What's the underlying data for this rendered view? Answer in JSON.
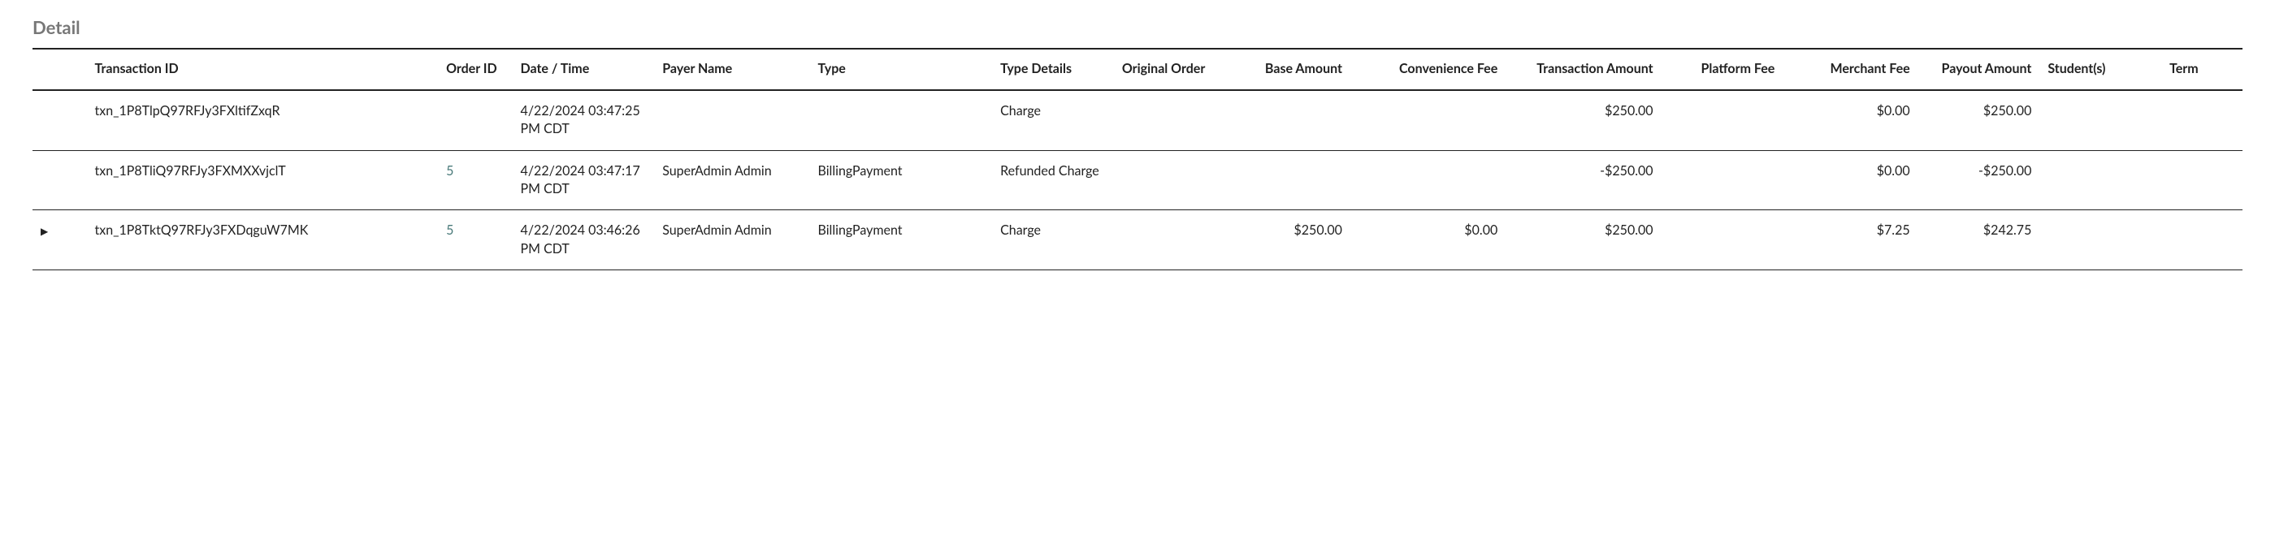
{
  "section_title": "Detail",
  "columns": {
    "expand": "",
    "transaction_id": "Transaction ID",
    "order_id": "Order ID",
    "datetime": "Date / Time",
    "payer_name": "Payer Name",
    "type": "Type",
    "type_details": "Type Details",
    "original_order": "Original Order",
    "base_amount": "Base Amount",
    "convenience_fee": "Convenience Fee",
    "transaction_amount": "Transaction Amount",
    "platform_fee": "Platform Fee",
    "merchant_fee": "Merchant Fee",
    "payout_amount": "Payout Amount",
    "students": "Student(s)",
    "term": "Term"
  },
  "rows": [
    {
      "expandable": false,
      "transaction_id": "txn_1P8TlpQ97RFJy3FXltifZxqR",
      "order_id": "",
      "datetime": "4/22/2024 03:47:25 PM CDT",
      "payer_name": "",
      "type": "",
      "type_details": "Charge",
      "original_order": "",
      "base_amount": "",
      "convenience_fee": "",
      "transaction_amount": "$250.00",
      "platform_fee": "",
      "merchant_fee": "$0.00",
      "payout_amount": "$250.00",
      "students": "",
      "term": ""
    },
    {
      "expandable": false,
      "transaction_id": "txn_1P8TliQ97RFJy3FXMXXvjclT",
      "order_id": "5",
      "datetime": "4/22/2024 03:47:17 PM CDT",
      "payer_name": "SuperAdmin Admin",
      "type": "BillingPayment",
      "type_details": "Refunded Charge",
      "original_order": "",
      "base_amount": "",
      "convenience_fee": "",
      "transaction_amount": "-$250.00",
      "platform_fee": "",
      "merchant_fee": "$0.00",
      "payout_amount": "-$250.00",
      "students": "",
      "term": ""
    },
    {
      "expandable": true,
      "transaction_id": "txn_1P8TktQ97RFJy3FXDqguW7MK",
      "order_id": "5",
      "datetime": "4/22/2024 03:46:26 PM CDT",
      "payer_name": "SuperAdmin Admin",
      "type": "BillingPayment",
      "type_details": "Charge",
      "original_order": "",
      "base_amount": "$250.00",
      "convenience_fee": "$0.00",
      "transaction_amount": "$250.00",
      "platform_fee": "",
      "merchant_fee": "$7.25",
      "payout_amount": "$242.75",
      "students": "",
      "term": ""
    }
  ],
  "styling": {
    "title_color": "#777777",
    "text_color": "#222222",
    "link_color": "#4a7a7a",
    "border_color": "#222222",
    "background": "#ffffff"
  }
}
